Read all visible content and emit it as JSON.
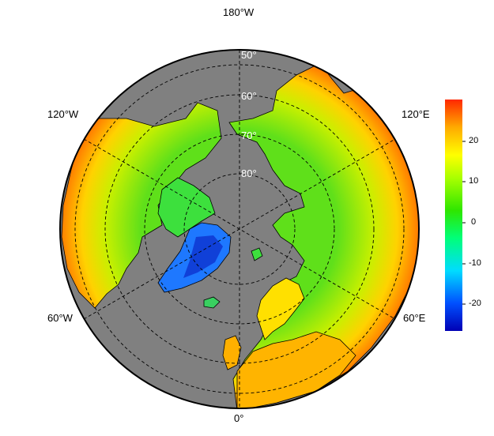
{
  "map": {
    "projection": "north-polar-stereographic",
    "ocean_color": "#808080",
    "border_color": "#000000"
  },
  "longitude_labels": {
    "top": "180°W",
    "bottom": "0°",
    "upper_left": "120°W",
    "upper_right": "120°E",
    "lower_left": "60°W",
    "lower_right": "60°E"
  },
  "latitude_labels": [
    "50°",
    "60°",
    "70°",
    "80°"
  ],
  "colorbar": {
    "ticks": [
      "20",
      "10",
      "0",
      "-10",
      "-20"
    ],
    "tick_values": [
      20,
      10,
      0,
      -10,
      -20
    ],
    "range": [
      -27,
      30
    ],
    "colors": [
      "#0000b4",
      "#0066ff",
      "#00e6ff",
      "#00ff80",
      "#33dd00",
      "#aaff00",
      "#ffff00",
      "#ffaa00",
      "#ff3300"
    ]
  }
}
